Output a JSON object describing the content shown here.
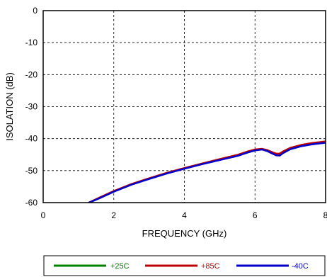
{
  "chart_data": {
    "type": "line",
    "xlabel": "FREQUENCY (GHz)",
    "ylabel": "ISOLATION (dB)",
    "xlim": [
      0,
      8
    ],
    "ylim": [
      -60,
      0
    ],
    "xticks": [
      0,
      2,
      4,
      6,
      8
    ],
    "yticks": [
      0,
      -10,
      -20,
      -30,
      -40,
      -50,
      -60
    ],
    "grid": true,
    "legend_position": "bottom",
    "series": [
      {
        "name": "+25C",
        "color": "#008000",
        "x": [
          1.3,
          1.6,
          2.0,
          2.5,
          3.0,
          3.5,
          4.0,
          4.5,
          5.0,
          5.5,
          5.8,
          6.0,
          6.2,
          6.35,
          6.5,
          6.6,
          6.7,
          6.8,
          7.0,
          7.3,
          7.6,
          8.0
        ],
        "y": [
          -60.0,
          -58.5,
          -56.5,
          -54.3,
          -52.5,
          -50.8,
          -49.3,
          -47.9,
          -46.6,
          -45.3,
          -44.2,
          -43.6,
          -43.3,
          -43.8,
          -44.6,
          -45.1,
          -45.2,
          -44.4,
          -43.2,
          -42.3,
          -41.7,
          -41.2
        ]
      },
      {
        "name": "+85C",
        "color": "#c00000",
        "x": [
          1.3,
          1.6,
          2.0,
          2.5,
          3.0,
          3.5,
          4.0,
          4.5,
          5.0,
          5.5,
          5.8,
          6.0,
          6.2,
          6.35,
          6.5,
          6.6,
          6.7,
          6.8,
          7.0,
          7.3,
          7.6,
          8.0
        ],
        "y": [
          -60.0,
          -58.4,
          -56.4,
          -54.2,
          -52.4,
          -50.7,
          -49.2,
          -47.8,
          -46.4,
          -45.1,
          -44.0,
          -43.4,
          -43.2,
          -43.6,
          -44.3,
          -44.7,
          -44.7,
          -44.0,
          -42.9,
          -42.0,
          -41.4,
          -40.9
        ]
      },
      {
        "name": "-40C",
        "color": "#0000cc",
        "x": [
          1.3,
          1.6,
          2.0,
          2.5,
          3.0,
          3.5,
          4.0,
          4.5,
          5.0,
          5.5,
          5.8,
          6.0,
          6.2,
          6.35,
          6.5,
          6.6,
          6.7,
          6.8,
          7.0,
          7.3,
          7.6,
          8.0
        ],
        "y": [
          -60.0,
          -58.6,
          -56.6,
          -54.4,
          -52.6,
          -50.9,
          -49.4,
          -48.0,
          -46.7,
          -45.4,
          -44.3,
          -43.7,
          -43.4,
          -43.9,
          -44.7,
          -45.2,
          -45.3,
          -44.5,
          -43.3,
          -42.4,
          -41.8,
          -41.3
        ]
      }
    ]
  }
}
